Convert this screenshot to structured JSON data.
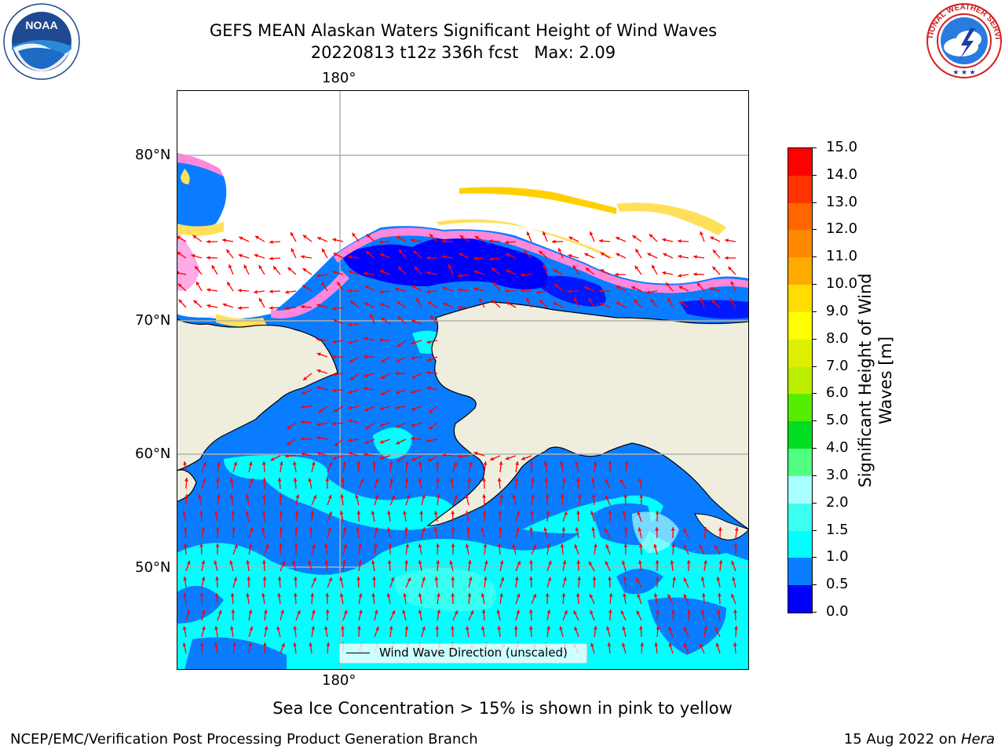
{
  "header": {
    "title_line1": "GEFS MEAN Alaskan Waters Significant Height of Wind Waves",
    "title_line2": "20220813 t12z 336h fcst   Max: 2.09",
    "noaa_logo_text": "NOAA",
    "noaa_ring_text": "NATIONAL OCEANIC AND ATMOSPHERIC ADMINISTRATION · U.S. DEPARTMENT OF COMMERCE",
    "nws_ring_text": "NATIONAL WEATHER SERVICE"
  },
  "map": {
    "lon_label_top": "180°",
    "lon_label_bottom": "180°",
    "lat_labels": [
      "80°N",
      "70°N",
      "60°N",
      "50°N"
    ],
    "colors": {
      "land": "#efedde",
      "ice": "#ffffff",
      "coast": "#000000",
      "grid": "#b0b0b0",
      "arrow": "#ff0000"
    },
    "legend_label": "Wind Wave Direction (unscaled)"
  },
  "colorbar": {
    "label": "Significant Height of Wind\nWaves [m]",
    "ticks": [
      "0.0",
      "0.5",
      "1.0",
      "1.5",
      "2.0",
      "3.0",
      "4.0",
      "5.0",
      "6.0",
      "7.0",
      "8.0",
      "9.0",
      "10.0",
      "11.0",
      "12.0",
      "13.0",
      "14.0",
      "15.0"
    ],
    "colors": [
      "#0000ff",
      "#0a7cff",
      "#00ffff",
      "#3dfff0",
      "#a8ffff",
      "#50ff80",
      "#00dd22",
      "#55ee00",
      "#bbee00",
      "#ddee00",
      "#ffff00",
      "#ffdd00",
      "#ffaa00",
      "#ff8800",
      "#ff6600",
      "#ff3300",
      "#ff0000"
    ]
  },
  "footer": {
    "note": "Sea Ice Concentration > 15% is shown in pink to yellow",
    "left": "NCEP/EMC/Verification Post Processing Product Generation Branch",
    "right_date": "15 Aug 2022 on ",
    "right_machine": "Hera"
  }
}
